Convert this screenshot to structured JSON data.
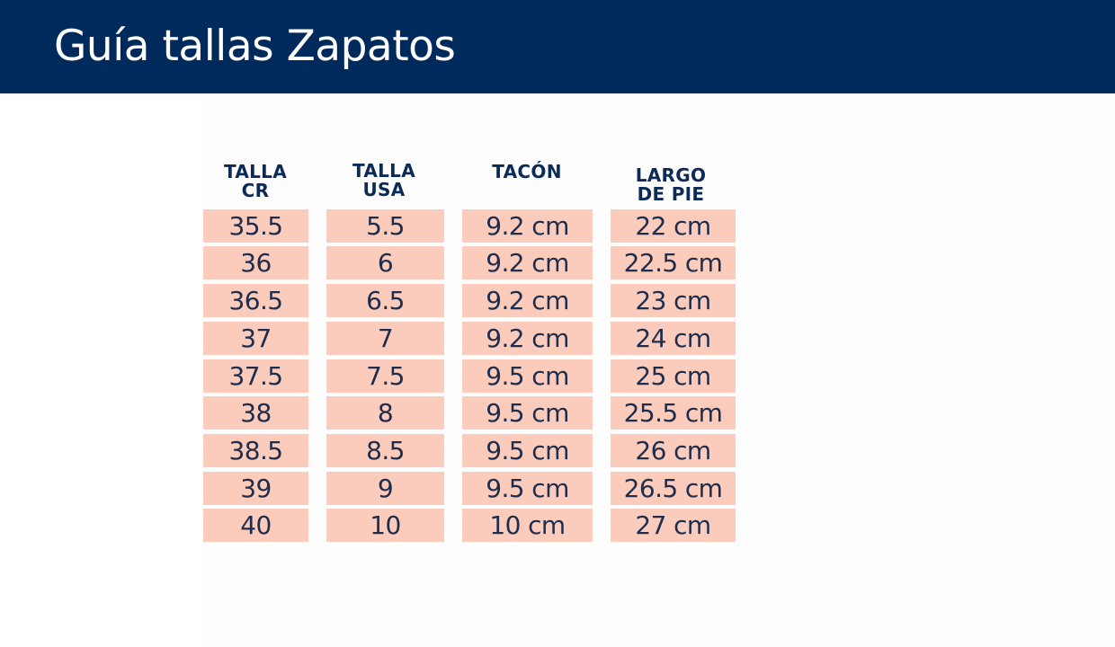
{
  "header": {
    "title": "Guía tallas Zapatos",
    "background": "#002a5c"
  },
  "table": {
    "cell_color": "#fbcbbc",
    "text_color": "#1f2d4c",
    "columns": [
      {
        "line1": "TALLA",
        "line2": "CR"
      },
      {
        "line1": "TALLA",
        "line2": "USA"
      },
      {
        "line1": "TACÓN",
        "line2": ""
      },
      {
        "line1": "LARGO",
        "line2": "DE PIE"
      }
    ],
    "rows": [
      [
        "35.5",
        "5.5",
        "9.2 cm",
        "22 cm"
      ],
      [
        "36",
        "6",
        "9.2 cm",
        "22.5 cm"
      ],
      [
        "36.5",
        "6.5",
        "9.2 cm",
        "23 cm"
      ],
      [
        "37",
        "7",
        "9.2 cm",
        "24 cm"
      ],
      [
        "37.5",
        "7.5",
        "9.5 cm",
        "25 cm"
      ],
      [
        "38",
        "8",
        "9.5 cm",
        "25.5 cm"
      ],
      [
        "38.5",
        "8.5",
        "9.5 cm",
        "26 cm"
      ],
      [
        "39",
        "9",
        "9.5 cm",
        "26.5 cm"
      ],
      [
        "40",
        "10",
        "10 cm",
        "27 cm"
      ]
    ]
  }
}
